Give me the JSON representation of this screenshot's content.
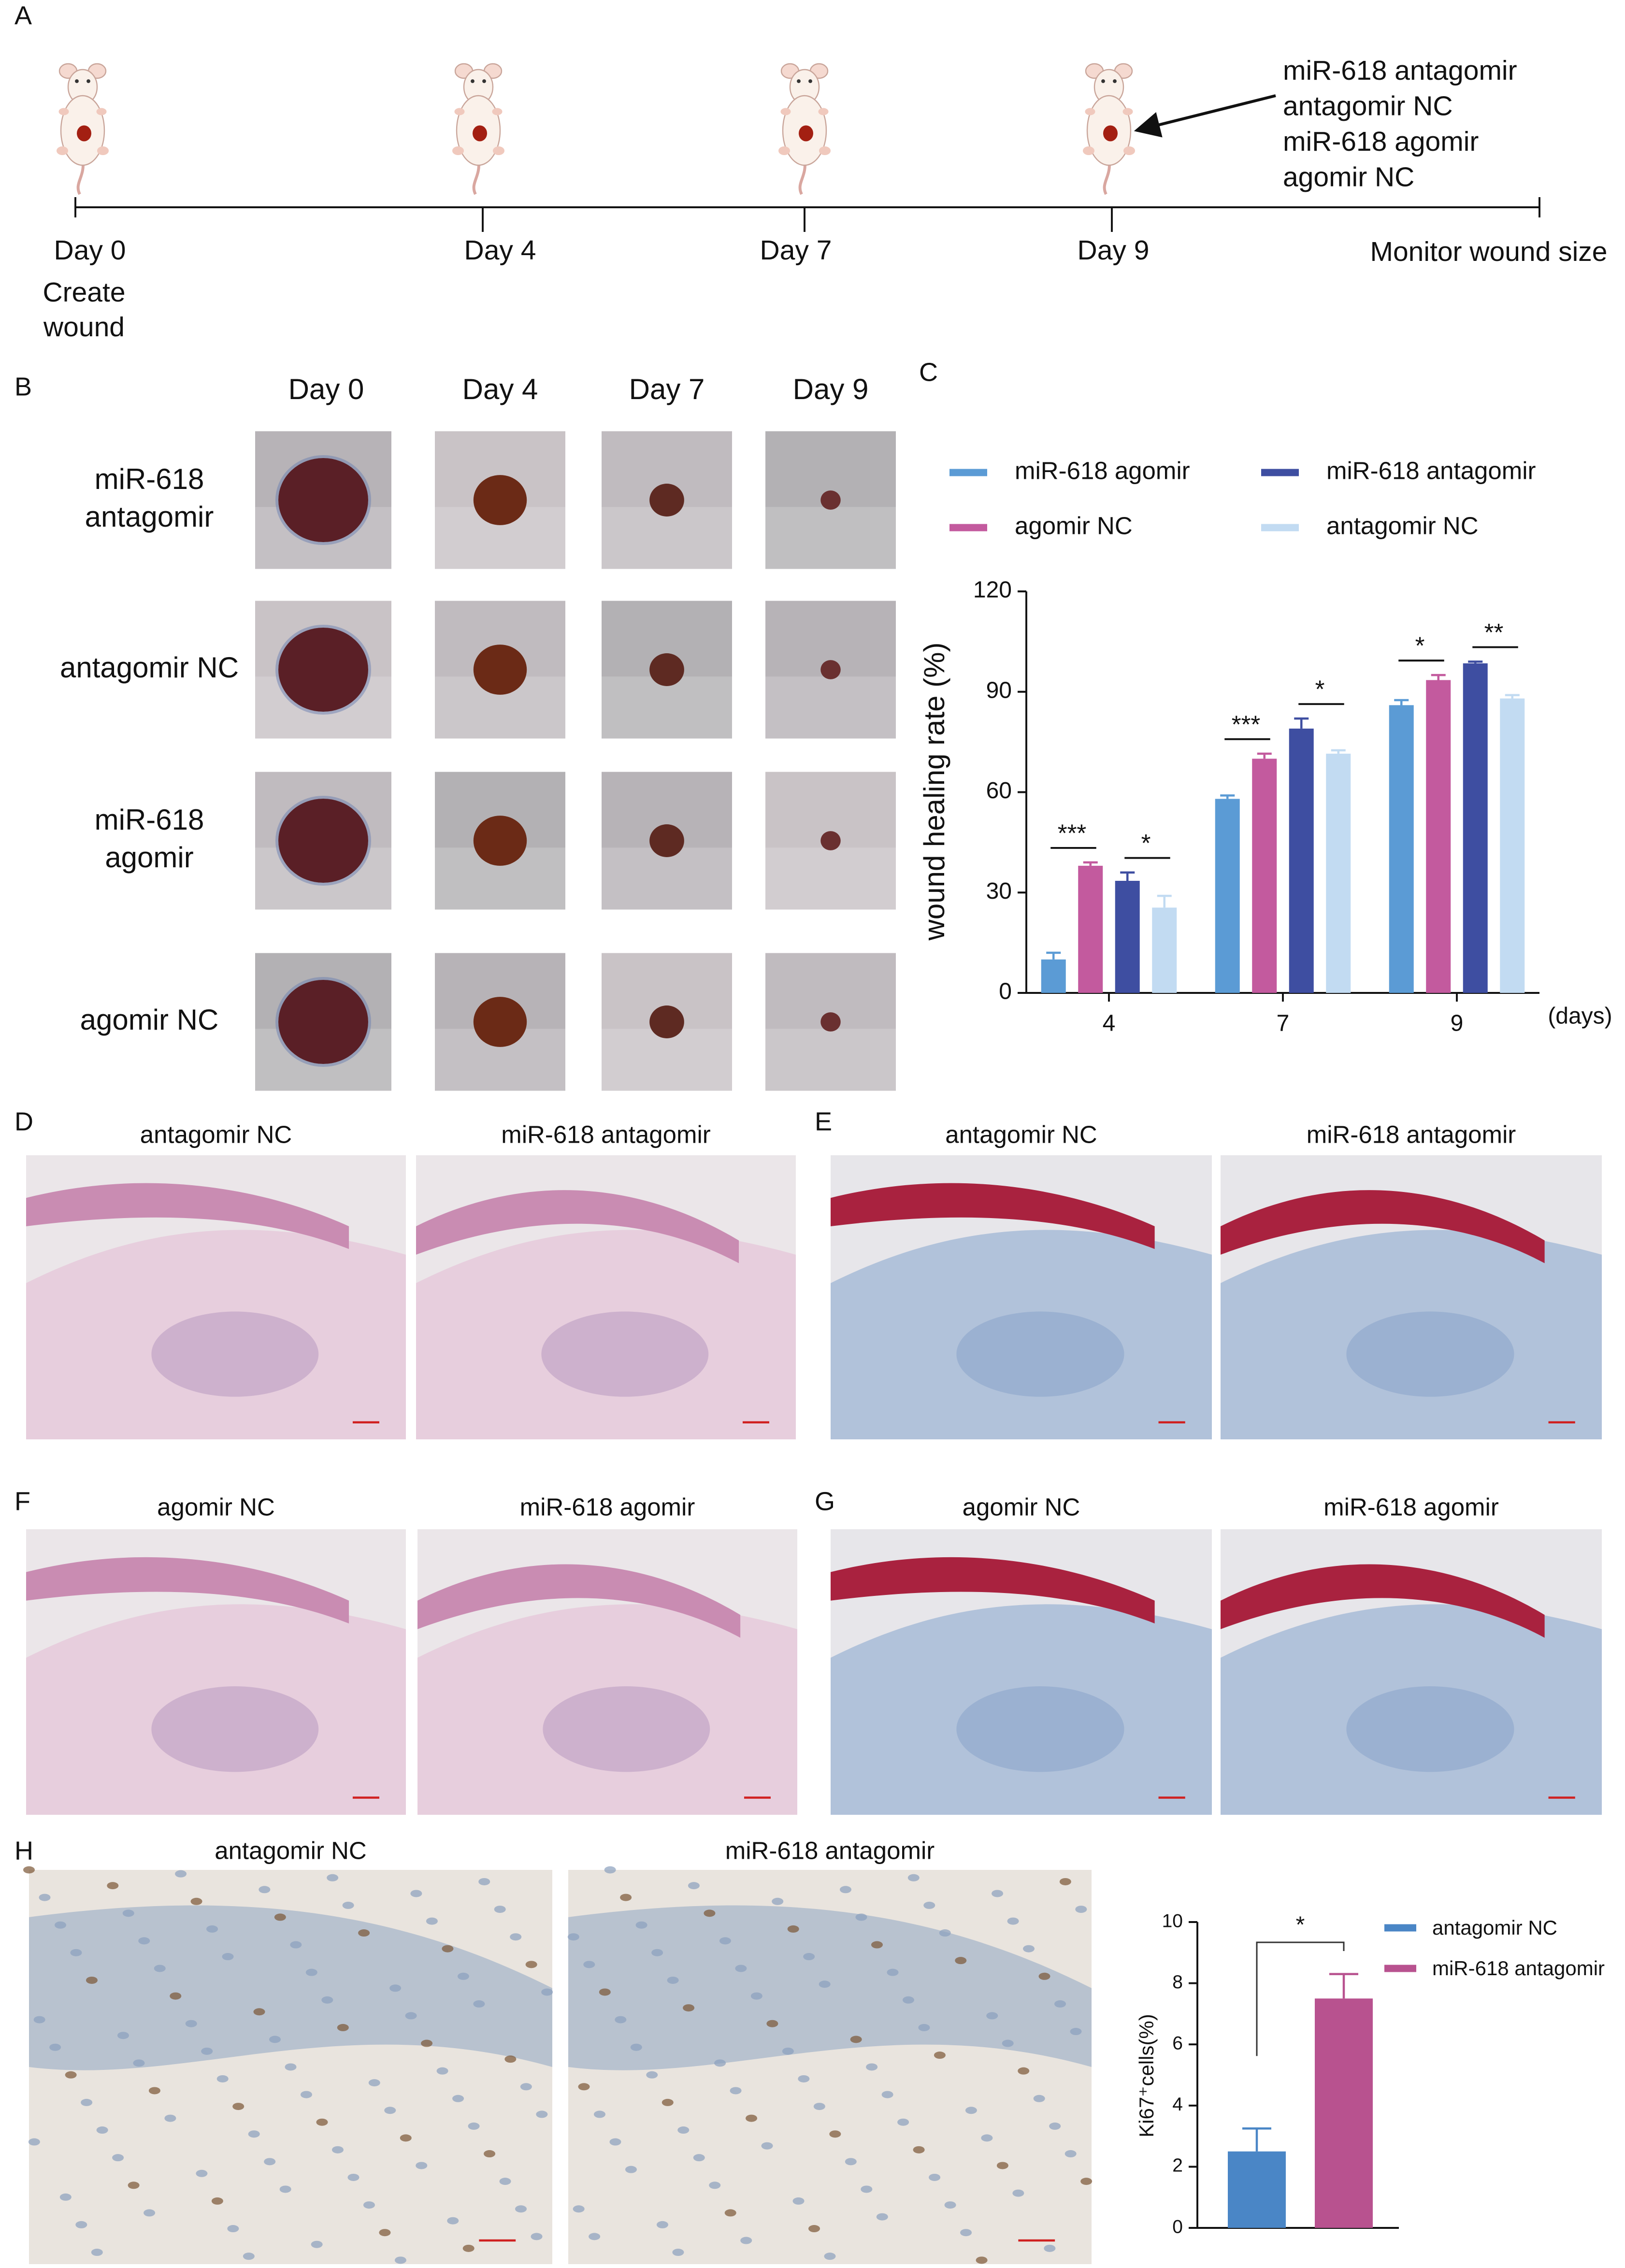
{
  "panel_labels": [
    "A",
    "B",
    "C",
    "D",
    "E",
    "F",
    "G",
    "H"
  ],
  "timeline": {
    "days": [
      {
        "label": "Day 0",
        "note": [
          "Create",
          "wound"
        ]
      },
      {
        "label": "Day 4"
      },
      {
        "label": "Day 7"
      },
      {
        "label": "Day 9"
      }
    ],
    "end_label": "Monitor wound size",
    "groups": [
      "miR-618 antagomir",
      "antagomir NC",
      "miR-618 agomir",
      "agomir NC"
    ]
  },
  "photo_grid": {
    "columns": [
      "Day 0",
      "Day 4",
      "Day 7",
      "Day 9"
    ],
    "rows": [
      [
        "miR-618",
        "antagomir"
      ],
      [
        "antagomir NC"
      ],
      [
        "miR-618",
        "agomir"
      ],
      [
        "agomir NC"
      ]
    ]
  },
  "chart_data": [
    {
      "type": "bar",
      "ylabel": "wound healing rate (%)",
      "xlabel": "(days)",
      "categories": [
        "4",
        "7",
        "9"
      ],
      "series": [
        {
          "name": "miR-618 agomir",
          "color": "#5b9bd5",
          "values": [
            10,
            58,
            86
          ],
          "errors": [
            2,
            1,
            1.5
          ]
        },
        {
          "name": "agomir NC",
          "color": "#c35a9e",
          "values": [
            38,
            70,
            93.5
          ],
          "errors": [
            1,
            1.5,
            1.5
          ]
        },
        {
          "name": "miR-618 antagomir",
          "color": "#3e4ea1",
          "values": [
            33.5,
            79,
            98.5
          ],
          "errors": [
            2.5,
            3,
            0.5
          ]
        },
        {
          "name": "antagomir NC",
          "color": "#c2dbf2",
          "values": [
            25.5,
            71.5,
            88
          ],
          "errors": [
            3.5,
            1,
            1
          ]
        }
      ],
      "ylim": [
        0,
        120
      ],
      "yticks": [
        0,
        30,
        60,
        90,
        120
      ],
      "annotations": [
        {
          "text": "***",
          "category": 0
        },
        {
          "text": "*",
          "category": 0
        },
        {
          "text": "***",
          "category": 1
        },
        {
          "text": "*",
          "category": 1
        },
        {
          "text": "*",
          "category": 2
        },
        {
          "text": "**",
          "category": 2
        }
      ]
    },
    {
      "type": "bar",
      "ylabel": "Ki67⁺cells(%)",
      "series": [
        {
          "name": "antagomir NC",
          "color": "#4a86c6",
          "values": [
            2.5
          ],
          "errors": [
            0.75
          ]
        },
        {
          "name": "miR-618 antagomir",
          "color": "#b8528f",
          "values": [
            7.5
          ],
          "errors": [
            0.8
          ]
        }
      ],
      "ylim": [
        0,
        10
      ],
      "yticks": [
        0,
        2,
        4,
        6,
        8,
        10
      ],
      "annotations": [
        {
          "text": "*"
        }
      ]
    }
  ],
  "histology": [
    {
      "titles": [
        "antagomir NC",
        "miR-618 antagomir"
      ]
    },
    {
      "titles": [
        "antagomir NC",
        "miR-618 antagomir"
      ]
    },
    {
      "titles": [
        "agomir NC",
        "miR-618 agomir"
      ]
    },
    {
      "titles": [
        "agomir NC",
        "miR-618 agomir"
      ]
    },
    {
      "titles": [
        "antagomir NC",
        "miR-618 antagomir"
      ]
    }
  ]
}
